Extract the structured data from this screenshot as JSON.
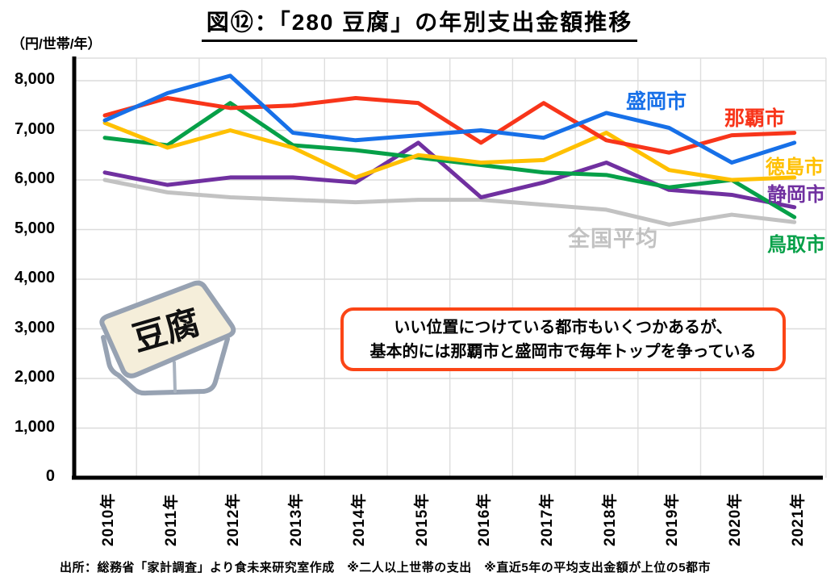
{
  "page": {
    "title": "図⑫：「280 豆腐」の年別支出金額推移",
    "y_axis_unit": "（円/世帯/年）",
    "footer": "出所：総務省「家計調査」より食未来研究室作成　※二人以上世帯の支出　※直近5年の平均支出金額が上位の5都市"
  },
  "annotation": {
    "line1": "いい位置につけている都市もいくつかあるが、",
    "line2": "基本的には那覇市と盛岡市で毎年トップを争っている",
    "border_color": "#FB4516"
  },
  "tofu": {
    "label": "豆腐"
  },
  "chart_data": {
    "type": "line",
    "title": "図⑫：「280 豆腐」の年別支出金額推移",
    "ylabel": "（円/世帯/年）",
    "categories": [
      "2010年",
      "2011年",
      "2012年",
      "2013年",
      "2014年",
      "2015年",
      "2016年",
      "2017年",
      "2018年",
      "2019年",
      "2020年",
      "2021年"
    ],
    "ylim": [
      0,
      8000
    ],
    "ytick_interval": 1000,
    "ytick_labels": [
      "0",
      "1,000",
      "2,000",
      "3,000",
      "4,000",
      "5,000",
      "6,000",
      "7,000",
      "8,000"
    ],
    "grid": true,
    "legend_position": "labels-near-lines",
    "series": [
      {
        "name": "盛岡市",
        "color": "#1770E8",
        "values": [
          7200,
          7750,
          8100,
          6950,
          6800,
          6900,
          7000,
          6850,
          7350,
          7050,
          6350,
          6750
        ]
      },
      {
        "name": "那覇市",
        "color": "#F8351A",
        "values": [
          7300,
          7650,
          7450,
          7500,
          7650,
          7550,
          6750,
          7550,
          6800,
          6550,
          6900,
          6950
        ]
      },
      {
        "name": "徳島市",
        "color": "#FFC000",
        "values": [
          7150,
          6650,
          7000,
          6650,
          6050,
          6500,
          6350,
          6400,
          6950,
          6200,
          6000,
          6050
        ]
      },
      {
        "name": "静岡市",
        "color": "#7030A0",
        "values": [
          6150,
          5900,
          6050,
          6050,
          5950,
          6750,
          5650,
          5950,
          6350,
          5800,
          5700,
          5450
        ]
      },
      {
        "name": "鳥取市",
        "color": "#06A048",
        "values": [
          6850,
          6700,
          7550,
          6700,
          6600,
          6450,
          6300,
          6150,
          6100,
          5850,
          6000,
          5250
        ]
      },
      {
        "name": "全国平均",
        "color": "#C2C2C2",
        "values": [
          6000,
          5750,
          5650,
          5600,
          5550,
          5600,
          5600,
          5500,
          5400,
          5100,
          5300,
          5150
        ]
      }
    ]
  }
}
